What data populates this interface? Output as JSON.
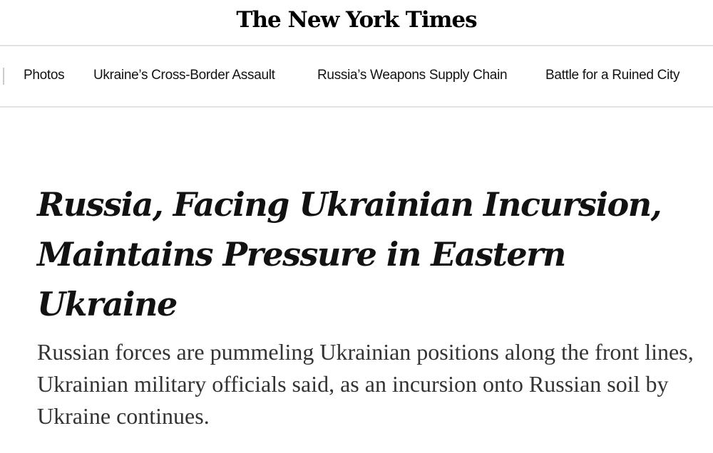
{
  "masthead": {
    "logo_text": "The New York Times"
  },
  "nav": {
    "items": [
      {
        "label": "Photos"
      },
      {
        "label": "Ukraine’s Cross-Border Assault"
      },
      {
        "label": "Russia’s Weapons Supply Chain"
      },
      {
        "label": "Battle for a Ruined City"
      }
    ]
  },
  "article": {
    "headline": "Russia, Facing Ukrainian Incursion, Maintains Pressure in Eastern Ukraine",
    "summary": "Russian forces are pummeling Ukrainian positions along the front lines, Ukrainian military officials said, as an incursion onto Russian soil by Ukraine continues."
  }
}
